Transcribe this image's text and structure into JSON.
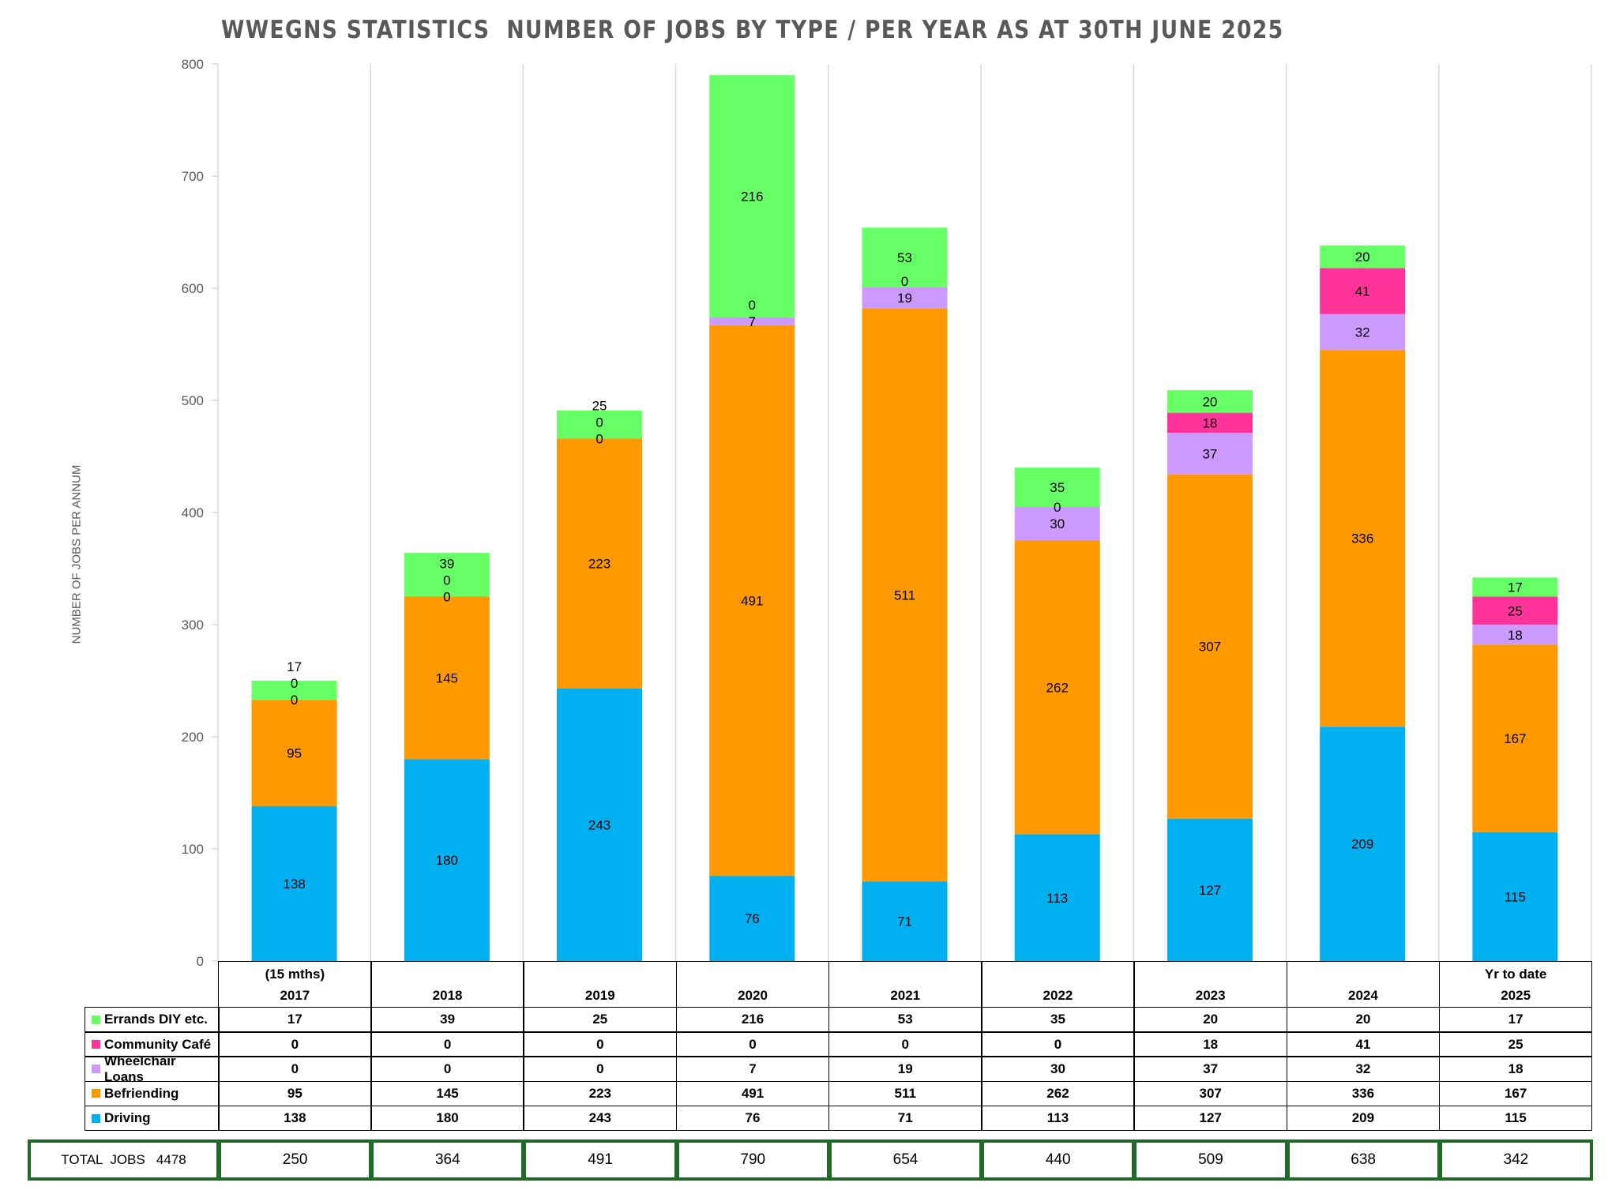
{
  "chart_data": {
    "type": "bar",
    "stacked": true,
    "title": "WWEGNS STATISTICS  NUMBER OF JOBS BY TYPE / PER YEAR AS AT 30TH JUNE 2025",
    "ylabel": "NUMBER OF JOBS PER ANNUM",
    "xlabel": "",
    "ylim": [
      0,
      800
    ],
    "yticks": [
      0,
      100,
      200,
      300,
      400,
      500,
      600,
      700,
      800
    ],
    "grid": "vertical",
    "legend": "data-table",
    "categories": [
      "2017",
      "2018",
      "2019",
      "2020",
      "2021",
      "2022",
      "2023",
      "2024",
      "2025"
    ],
    "category_notes": [
      "(15 mths)",
      "",
      "",
      "",
      "",
      "",
      "",
      "",
      "Yr to date"
    ],
    "series": [
      {
        "name": "Driving",
        "color": "#00B0F0",
        "values": [
          138,
          180,
          243,
          76,
          71,
          113,
          127,
          209,
          115
        ]
      },
      {
        "name": "Befriending",
        "color": "#FF9900",
        "values": [
          95,
          145,
          223,
          491,
          511,
          262,
          307,
          336,
          167
        ]
      },
      {
        "name": "Wheelchair Loans",
        "color": "#CC99FF",
        "values": [
          0,
          0,
          0,
          7,
          19,
          30,
          37,
          32,
          18
        ]
      },
      {
        "name": "Community Café",
        "color": "#FF3399",
        "values": [
          0,
          0,
          0,
          0,
          0,
          0,
          18,
          41,
          25
        ]
      },
      {
        "name": "Errands DIY etc.",
        "color": "#66FF66",
        "values": [
          17,
          39,
          25,
          216,
          53,
          35,
          20,
          20,
          17
        ]
      }
    ],
    "table_row_order": [
      "Errands DIY etc.",
      "Community Café",
      "Wheelchair Loans",
      "Befriending",
      "Driving"
    ],
    "totals": {
      "label": "TOTAL  JOBS",
      "grand_total": "4478",
      "values": [
        250,
        364,
        491,
        790,
        654,
        440,
        509,
        638,
        342
      ]
    }
  }
}
